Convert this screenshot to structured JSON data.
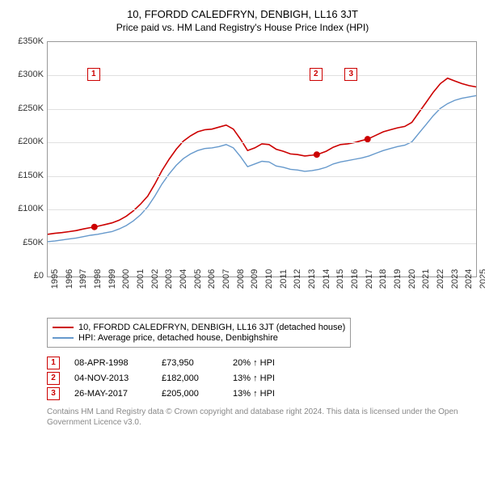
{
  "title": "10, FFORDD CALEDFRYN, DENBIGH, LL16 3JT",
  "subtitle": "Price paid vs. HM Land Registry's House Price Index (HPI)",
  "chart": {
    "type": "line",
    "background_color": "#ffffff",
    "grid_color": "#e0e0e0",
    "axis_color": "#999999",
    "tick_fontsize": 11,
    "ylim": [
      0,
      350000
    ],
    "ytick_step": 50000,
    "yticks": [
      "£0",
      "£50K",
      "£100K",
      "£150K",
      "£200K",
      "£250K",
      "£300K",
      "£350K"
    ],
    "xlim": [
      1995,
      2025
    ],
    "xticks": [
      1995,
      1996,
      1997,
      1998,
      1999,
      2000,
      2001,
      2002,
      2003,
      2004,
      2005,
      2006,
      2007,
      2008,
      2009,
      2010,
      2011,
      2012,
      2013,
      2014,
      2015,
      2016,
      2017,
      2018,
      2019,
      2020,
      2021,
      2022,
      2023,
      2024,
      2025
    ],
    "series": [
      {
        "name": "10, FFORDD CALEDFRYN, DENBIGH, LL16 3JT (detached house)",
        "color": "#cc0000",
        "line_width": 1.6,
        "data": [
          [
            1995,
            63000
          ],
          [
            1995.5,
            64500
          ],
          [
            1996,
            65500
          ],
          [
            1996.5,
            67000
          ],
          [
            1997,
            68500
          ],
          [
            1997.5,
            71000
          ],
          [
            1998,
            73000
          ],
          [
            1998.27,
            73950
          ],
          [
            1998.5,
            75000
          ],
          [
            1999,
            77500
          ],
          [
            1999.5,
            80000
          ],
          [
            2000,
            84000
          ],
          [
            2000.5,
            90000
          ],
          [
            2001,
            98000
          ],
          [
            2001.5,
            108000
          ],
          [
            2002,
            120000
          ],
          [
            2002.5,
            138000
          ],
          [
            2003,
            158000
          ],
          [
            2003.5,
            175000
          ],
          [
            2004,
            190000
          ],
          [
            2004.5,
            202000
          ],
          [
            2005,
            210000
          ],
          [
            2005.5,
            216000
          ],
          [
            2006,
            219000
          ],
          [
            2006.5,
            220000
          ],
          [
            2007,
            223000
          ],
          [
            2007.5,
            226000
          ],
          [
            2008,
            220000
          ],
          [
            2008.5,
            205000
          ],
          [
            2009,
            188000
          ],
          [
            2009.5,
            192000
          ],
          [
            2010,
            198000
          ],
          [
            2010.5,
            197000
          ],
          [
            2011,
            190000
          ],
          [
            2011.5,
            187000
          ],
          [
            2012,
            183000
          ],
          [
            2012.5,
            182000
          ],
          [
            2013,
            180000
          ],
          [
            2013.5,
            181000
          ],
          [
            2013.84,
            182000
          ],
          [
            2014,
            183000
          ],
          [
            2014.5,
            187000
          ],
          [
            2015,
            193000
          ],
          [
            2015.5,
            197000
          ],
          [
            2016,
            198000
          ],
          [
            2016.5,
            200000
          ],
          [
            2017,
            203000
          ],
          [
            2017.4,
            205000
          ],
          [
            2017.5,
            206000
          ],
          [
            2018,
            211000
          ],
          [
            2018.5,
            216000
          ],
          [
            2019,
            219000
          ],
          [
            2019.5,
            222000
          ],
          [
            2020,
            224000
          ],
          [
            2020.5,
            230000
          ],
          [
            2021,
            245000
          ],
          [
            2021.5,
            260000
          ],
          [
            2022,
            275000
          ],
          [
            2022.5,
            288000
          ],
          [
            2023,
            296000
          ],
          [
            2023.5,
            292000
          ],
          [
            2024,
            288000
          ],
          [
            2024.5,
            285000
          ],
          [
            2025,
            283000
          ]
        ]
      },
      {
        "name": "HPI: Average price, detached house, Denbighshire",
        "color": "#6699cc",
        "line_width": 1.4,
        "data": [
          [
            1995,
            52000
          ],
          [
            1995.5,
            53000
          ],
          [
            1996,
            54500
          ],
          [
            1996.5,
            56000
          ],
          [
            1997,
            57500
          ],
          [
            1997.5,
            59500
          ],
          [
            1998,
            61500
          ],
          [
            1998.5,
            63000
          ],
          [
            1999,
            65000
          ],
          [
            1999.5,
            67000
          ],
          [
            2000,
            71000
          ],
          [
            2000.5,
            76000
          ],
          [
            2001,
            83000
          ],
          [
            2001.5,
            92000
          ],
          [
            2002,
            104000
          ],
          [
            2002.5,
            120000
          ],
          [
            2003,
            138000
          ],
          [
            2003.5,
            153000
          ],
          [
            2004,
            166000
          ],
          [
            2004.5,
            176000
          ],
          [
            2005,
            183000
          ],
          [
            2005.5,
            188000
          ],
          [
            2006,
            191000
          ],
          [
            2006.5,
            192000
          ],
          [
            2007,
            194000
          ],
          [
            2007.5,
            197000
          ],
          [
            2008,
            192000
          ],
          [
            2008.5,
            179000
          ],
          [
            2009,
            164000
          ],
          [
            2009.5,
            168000
          ],
          [
            2010,
            172000
          ],
          [
            2010.5,
            171000
          ],
          [
            2011,
            165000
          ],
          [
            2011.5,
            163000
          ],
          [
            2012,
            160000
          ],
          [
            2012.5,
            159000
          ],
          [
            2013,
            157000
          ],
          [
            2013.5,
            158000
          ],
          [
            2014,
            160000
          ],
          [
            2014.5,
            163000
          ],
          [
            2015,
            168000
          ],
          [
            2015.5,
            171000
          ],
          [
            2016,
            173000
          ],
          [
            2016.5,
            175000
          ],
          [
            2017,
            177000
          ],
          [
            2017.5,
            180000
          ],
          [
            2018,
            184000
          ],
          [
            2018.5,
            188000
          ],
          [
            2019,
            191000
          ],
          [
            2019.5,
            194000
          ],
          [
            2020,
            196000
          ],
          [
            2020.5,
            201000
          ],
          [
            2021,
            214000
          ],
          [
            2021.5,
            227000
          ],
          [
            2022,
            240000
          ],
          [
            2022.5,
            251000
          ],
          [
            2023,
            258000
          ],
          [
            2023.5,
            263000
          ],
          [
            2024,
            266000
          ],
          [
            2024.5,
            268000
          ],
          [
            2025,
            270000
          ]
        ]
      }
    ],
    "markers": [
      {
        "n": "1",
        "x": 1998.27,
        "y": 73950,
        "flag_x": 1998.27,
        "flag_y": 310000
      },
      {
        "n": "2",
        "x": 2013.84,
        "y": 182000,
        "flag_x": 2013.84,
        "flag_y": 310000
      },
      {
        "n": "3",
        "x": 2017.4,
        "y": 205000,
        "flag_x": 2016.3,
        "flag_y": 310000
      }
    ]
  },
  "legend": {
    "border_color": "#999999",
    "fontsize": 11,
    "items": [
      {
        "color": "#cc0000",
        "label": "10, FFORDD CALEDFRYN, DENBIGH, LL16 3JT (detached house)"
      },
      {
        "color": "#6699cc",
        "label": "HPI: Average price, detached house, Denbighshire"
      }
    ]
  },
  "transactions": [
    {
      "n": "1",
      "date": "08-APR-1998",
      "price": "£73,950",
      "hpi": "20% ↑ HPI"
    },
    {
      "n": "2",
      "date": "04-NOV-2013",
      "price": "£182,000",
      "hpi": "13% ↑ HPI"
    },
    {
      "n": "3",
      "date": "26-MAY-2017",
      "price": "£205,000",
      "hpi": "13% ↑ HPI"
    }
  ],
  "footnote": "Contains HM Land Registry data © Crown copyright and database right 2024. This data is licensed under the Open Government Licence v3.0."
}
